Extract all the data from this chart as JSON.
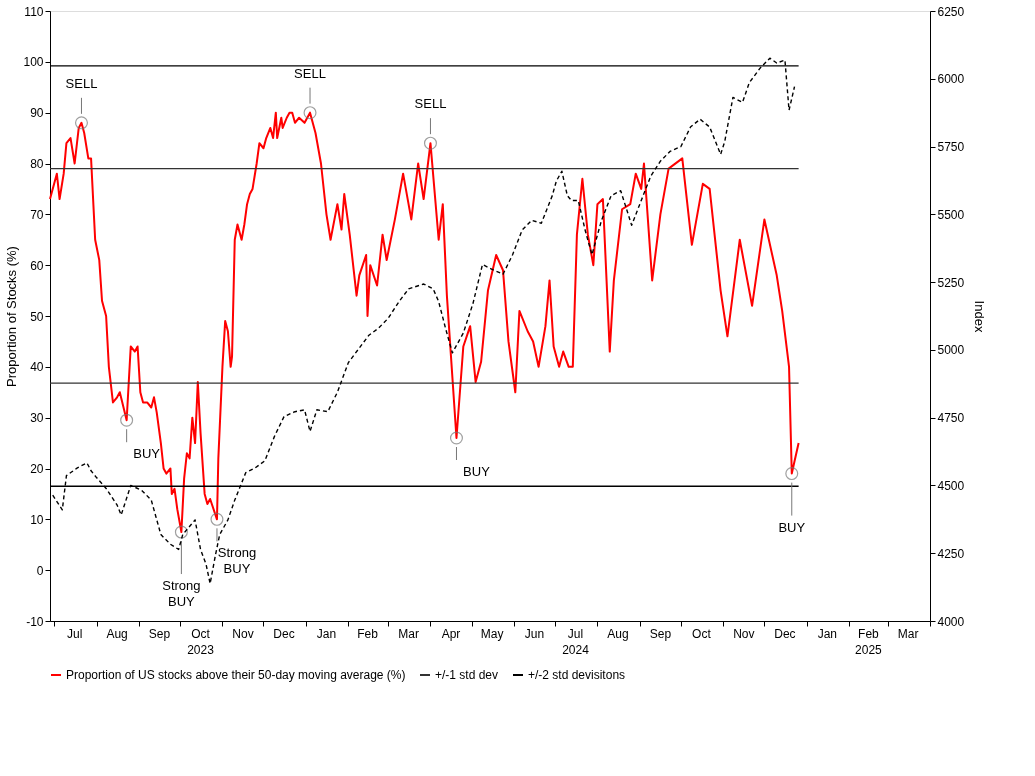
{
  "chart_data": {
    "type": "line",
    "ylabel": "Proportion of Stocks (%)",
    "y2label": "Index",
    "xlim": [
      "2023-06-28",
      "2025-04-01"
    ],
    "ylim": [
      -10,
      110
    ],
    "yticks": [
      -10,
      0,
      10,
      20,
      30,
      40,
      50,
      60,
      70,
      80,
      90,
      100,
      110
    ],
    "y2lim": [
      4000,
      6250
    ],
    "y2ticks": [
      4000,
      4250,
      4500,
      4750,
      5000,
      5250,
      5500,
      5750,
      6000,
      6250
    ],
    "xticks": [
      {
        "value": "2023-07-01",
        "label": null
      },
      {
        "value": "2023-07-16",
        "label": "Jul"
      },
      {
        "value": "2023-08-01",
        "label": null
      },
      {
        "value": "2023-08-16",
        "label": "Aug"
      },
      {
        "value": "2023-09-01",
        "label": null
      },
      {
        "value": "2023-09-16",
        "label": "Sep"
      },
      {
        "value": "2023-10-01",
        "label": null
      },
      {
        "value": "2023-10-16",
        "label": "Oct\n2023"
      },
      {
        "value": "2023-11-01",
        "label": null
      },
      {
        "value": "2023-11-16",
        "label": "Nov"
      },
      {
        "value": "2023-12-01",
        "label": null
      },
      {
        "value": "2023-12-16",
        "label": "Dec"
      },
      {
        "value": "2024-01-01",
        "label": null
      },
      {
        "value": "2024-01-16",
        "label": "Jan"
      },
      {
        "value": "2024-02-01",
        "label": null
      },
      {
        "value": "2024-02-15",
        "label": "Feb"
      },
      {
        "value": "2024-03-01",
        "label": null
      },
      {
        "value": "2024-03-16",
        "label": "Mar"
      },
      {
        "value": "2024-04-01",
        "label": null
      },
      {
        "value": "2024-04-16",
        "label": "Apr"
      },
      {
        "value": "2024-05-01",
        "label": null
      },
      {
        "value": "2024-05-16",
        "label": "May"
      },
      {
        "value": "2024-06-01",
        "label": null
      },
      {
        "value": "2024-06-16",
        "label": "Jun"
      },
      {
        "value": "2024-07-01",
        "label": null
      },
      {
        "value": "2024-07-16",
        "label": "Jul\n2024"
      },
      {
        "value": "2024-08-01",
        "label": null
      },
      {
        "value": "2024-08-16",
        "label": "Aug"
      },
      {
        "value": "2024-09-01",
        "label": null
      },
      {
        "value": "2024-09-16",
        "label": "Sep"
      },
      {
        "value": "2024-10-01",
        "label": null
      },
      {
        "value": "2024-10-16",
        "label": "Oct"
      },
      {
        "value": "2024-11-01",
        "label": null
      },
      {
        "value": "2024-11-16",
        "label": "Nov"
      },
      {
        "value": "2024-12-01",
        "label": null
      },
      {
        "value": "2024-12-16",
        "label": "Dec"
      },
      {
        "value": "2025-01-01",
        "label": null
      },
      {
        "value": "2025-01-16",
        "label": "Jan"
      },
      {
        "value": "2025-02-01",
        "label": null
      },
      {
        "value": "2025-02-15",
        "label": "Feb\n2025"
      },
      {
        "value": "2025-03-01",
        "label": null
      },
      {
        "value": "2025-03-16",
        "label": "Mar"
      },
      {
        "value": "2025-04-01",
        "label": null
      }
    ],
    "grid": false,
    "legend": "bottom",
    "marker": "none",
    "series": [
      {
        "name": "Proportion of US stocks above their 50-day moving average (%)",
        "color": "#ff0000",
        "line_style": "solid",
        "x": [
          "2023-06-28",
          "2023-07-03",
          "2023-07-05",
          "2023-07-08",
          "2023-07-10",
          "2023-07-13",
          "2023-07-16",
          "2023-07-19",
          "2023-07-21",
          "2023-07-23",
          "2023-07-26",
          "2023-07-28",
          "2023-07-31",
          "2023-08-03",
          "2023-08-05",
          "2023-08-08",
          "2023-08-10",
          "2023-08-13",
          "2023-08-16",
          "2023-08-18",
          "2023-08-23",
          "2023-08-26",
          "2023-08-29",
          "2023-08-31",
          "2023-09-02",
          "2023-09-04",
          "2023-09-07",
          "2023-09-10",
          "2023-09-12",
          "2023-09-14",
          "2023-09-17",
          "2023-09-19",
          "2023-09-21",
          "2023-09-24",
          "2023-09-25",
          "2023-09-27",
          "2023-09-29",
          "2023-10-02",
          "2023-10-04",
          "2023-10-06",
          "2023-10-08",
          "2023-10-10",
          "2023-10-12",
          "2023-10-14",
          "2023-10-16",
          "2023-10-19",
          "2023-10-21",
          "2023-10-23",
          "2023-10-28",
          "2023-10-29",
          "2023-11-01",
          "2023-11-03",
          "2023-11-05",
          "2023-11-07",
          "2023-11-08",
          "2023-11-10",
          "2023-11-12",
          "2023-11-15",
          "2023-11-17",
          "2023-11-19",
          "2023-11-21",
          "2023-11-23",
          "2023-11-26",
          "2023-11-28",
          "2023-12-01",
          "2023-12-03",
          "2023-12-06",
          "2023-12-08",
          "2023-12-10",
          "2023-12-11",
          "2023-12-14",
          "2023-12-15",
          "2023-12-18",
          "2023-12-20",
          "2023-12-22",
          "2023-12-24",
          "2023-12-27",
          "2023-12-31",
          "2024-01-04",
          "2024-01-08",
          "2024-01-12",
          "2024-01-16",
          "2024-01-19",
          "2024-01-24",
          "2024-01-27",
          "2024-01-29",
          "2024-02-02",
          "2024-02-07",
          "2024-02-09",
          "2024-02-14",
          "2024-02-15",
          "2024-02-17",
          "2024-02-22",
          "2024-02-26",
          "2024-02-29",
          "2024-03-06",
          "2024-03-12",
          "2024-03-18",
          "2024-03-23",
          "2024-03-27",
          "2024-04-01",
          "2024-04-07",
          "2024-04-10",
          "2024-04-13",
          "2024-04-20",
          "2024-04-25",
          "2024-04-30",
          "2024-05-04",
          "2024-05-08",
          "2024-05-13",
          "2024-05-19",
          "2024-05-24",
          "2024-05-28",
          "2024-06-02",
          "2024-06-05",
          "2024-06-11",
          "2024-06-15",
          "2024-06-19",
          "2024-06-24",
          "2024-06-27",
          "2024-06-30",
          "2024-07-04",
          "2024-07-07",
          "2024-07-11",
          "2024-07-14",
          "2024-07-17",
          "2024-07-21",
          "2024-07-25",
          "2024-07-29",
          "2024-08-01",
          "2024-08-05",
          "2024-08-10",
          "2024-08-13",
          "2024-08-19",
          "2024-08-25",
          "2024-08-29",
          "2024-09-02",
          "2024-09-04",
          "2024-09-10",
          "2024-09-16",
          "2024-09-22",
          "2024-10-02",
          "2024-10-09",
          "2024-10-17",
          "2024-10-22",
          "2024-10-30",
          "2024-11-04",
          "2024-11-13",
          "2024-11-22",
          "2024-12-01",
          "2024-12-10",
          "2024-12-14",
          "2024-12-19",
          "2024-12-21",
          "2024-12-26"
        ],
        "values": [
          73,
          78,
          73,
          78,
          84,
          85,
          80,
          87,
          88,
          86,
          81,
          81,
          65,
          61,
          53,
          50,
          40,
          33,
          34,
          35,
          29.5,
          44,
          43,
          44,
          35,
          33,
          33,
          32,
          34,
          31,
          25,
          20,
          19,
          20,
          15,
          16,
          12,
          7.5,
          18,
          23,
          22,
          30,
          25,
          37,
          27,
          15,
          13,
          14,
          10,
          22,
          40,
          49,
          47,
          40,
          42,
          65,
          68,
          65,
          68,
          72,
          74,
          75,
          80,
          84,
          83,
          85,
          87,
          85,
          90,
          85,
          89,
          87,
          89,
          90,
          90,
          88,
          89,
          88,
          90,
          86,
          80,
          70,
          65,
          72,
          67,
          74,
          66,
          54,
          58,
          62,
          50,
          60,
          56,
          66,
          61,
          69,
          78,
          69,
          80,
          73,
          84,
          65,
          72,
          54,
          26,
          44,
          48,
          37,
          41,
          55,
          62,
          59,
          45,
          35,
          51,
          47,
          45,
          40,
          48,
          57,
          44,
          40,
          43,
          40,
          40,
          66,
          77,
          66,
          60,
          72,
          73,
          43,
          57,
          71,
          72,
          78,
          75,
          80,
          57,
          70,
          79,
          81,
          64,
          76,
          75,
          55,
          46,
          65,
          52,
          69,
          58,
          51,
          40,
          19,
          25
        ]
      },
      {
        "color": "#000000",
        "axis": "y2",
        "line_style": "dashed",
        "x": [
          "2023-06-30",
          "2023-07-07",
          "2023-07-10",
          "2023-07-18",
          "2023-07-25",
          "2023-07-28",
          "2023-08-01",
          "2023-08-08",
          "2023-08-16",
          "2023-08-19",
          "2023-08-26",
          "2023-09-03",
          "2023-09-10",
          "2023-09-17",
          "2023-09-24",
          "2023-09-30",
          "2023-10-03",
          "2023-10-09",
          "2023-10-12",
          "2023-10-16",
          "2023-10-20",
          "2023-10-23",
          "2023-10-27",
          "2023-10-30",
          "2023-11-05",
          "2023-11-10",
          "2023-11-18",
          "2023-11-25",
          "2023-12-02",
          "2023-12-09",
          "2023-12-16",
          "2023-12-24",
          "2023-12-31",
          "2024-01-04",
          "2024-01-09",
          "2024-01-17",
          "2024-01-24",
          "2024-02-01",
          "2024-02-09",
          "2024-02-16",
          "2024-02-23",
          "2024-03-01",
          "2024-03-09",
          "2024-03-16",
          "2024-03-27",
          "2024-04-03",
          "2024-04-07",
          "2024-04-12",
          "2024-04-17",
          "2024-04-25",
          "2024-05-02",
          "2024-05-09",
          "2024-05-16",
          "2024-05-24",
          "2024-05-31",
          "2024-06-07",
          "2024-06-14",
          "2024-06-21",
          "2024-06-29",
          "2024-07-02",
          "2024-07-06",
          "2024-07-10",
          "2024-07-13",
          "2024-07-18",
          "2024-07-23",
          "2024-07-28",
          "2024-08-04",
          "2024-08-11",
          "2024-08-18",
          "2024-08-26",
          "2024-09-02",
          "2024-09-09",
          "2024-09-16",
          "2024-09-23",
          "2024-10-01",
          "2024-10-08",
          "2024-10-15",
          "2024-10-22",
          "2024-10-30",
          "2024-11-02",
          "2024-11-08",
          "2024-11-15",
          "2024-11-20",
          "2024-11-28",
          "2024-12-05",
          "2024-12-10",
          "2024-12-16",
          "2024-12-19",
          "2024-12-23"
        ],
        "values": [
          4464,
          4410,
          4536,
          4565,
          4583,
          4554,
          4529,
          4489,
          4428,
          4391,
          4500,
          4482,
          4446,
          4319,
          4283,
          4264,
          4319,
          4355,
          4373,
          4264,
          4210,
          4138,
          4246,
          4319,
          4373,
          4446,
          4547,
          4565,
          4591,
          4681,
          4754,
          4772,
          4779,
          4699,
          4779,
          4772,
          4844,
          4953,
          5007,
          5054,
          5080,
          5116,
          5178,
          5225,
          5243,
          5225,
          5178,
          5080,
          4989,
          5062,
          5170,
          5315,
          5297,
          5279,
          5351,
          5442,
          5478,
          5467,
          5569,
          5623,
          5659,
          5569,
          5551,
          5551,
          5442,
          5351,
          5478,
          5569,
          5587,
          5460,
          5551,
          5641,
          5696,
          5732,
          5750,
          5822,
          5851,
          5822,
          5721,
          5768,
          5931,
          5913,
          5986,
          6040,
          6076,
          6058,
          6069,
          5884,
          5971
        ]
      },
      {
        "name": "+/-1 std dev",
        "color": "#333333",
        "line_style": "solid",
        "x": [
          "2023-06-28",
          "2024-12-26"
        ],
        "values": [
          79,
          79
        ]
      },
      {
        "color": "#333333",
        "line_style": "solid",
        "x": [
          "2023-06-28",
          "2024-12-26"
        ],
        "values": [
          36.8,
          36.8
        ]
      },
      {
        "name": "+/-2 std devisitons",
        "color": "#000000",
        "line_style": "solid",
        "x": [
          "2023-06-28",
          "2024-12-26"
        ],
        "values": [
          99.2,
          99.2
        ]
      },
      {
        "color": "#000000",
        "line_style": "solid",
        "x": [
          "2023-06-28",
          "2024-12-26"
        ],
        "values": [
          16.5,
          16.5
        ]
      },
      {
        "type": "scatter",
        "color": "#777777",
        "marker": "circle",
        "x": [
          "2023-07-21",
          "2023-08-23",
          "2023-10-02",
          "2023-10-28",
          "2024-01-04",
          "2024-04-01",
          "2024-04-20",
          "2024-12-21"
        ],
        "values": [
          88,
          29.5,
          7.5,
          10,
          90,
          84,
          26,
          19
        ]
      }
    ],
    "annotations": [
      {
        "text": "SELL",
        "x": "2023-07-21",
        "y": 88
      },
      {
        "text": "BUY",
        "x": "2023-08-23",
        "y": 29.5
      },
      {
        "text": "Strong BUY",
        "x": "2023-10-02",
        "y": 7.5
      },
      {
        "text": "Strong BUY",
        "x": "2023-10-28",
        "y": 10
      },
      {
        "text": "SELL",
        "x": "2024-01-04",
        "y": 90
      },
      {
        "text": "SELL",
        "x": "2024-04-01",
        "y": 84
      },
      {
        "text": "BUY",
        "x": "2024-04-20",
        "y": 26
      },
      {
        "text": "BUY",
        "x": "2024-12-21",
        "y": 19
      }
    ]
  }
}
